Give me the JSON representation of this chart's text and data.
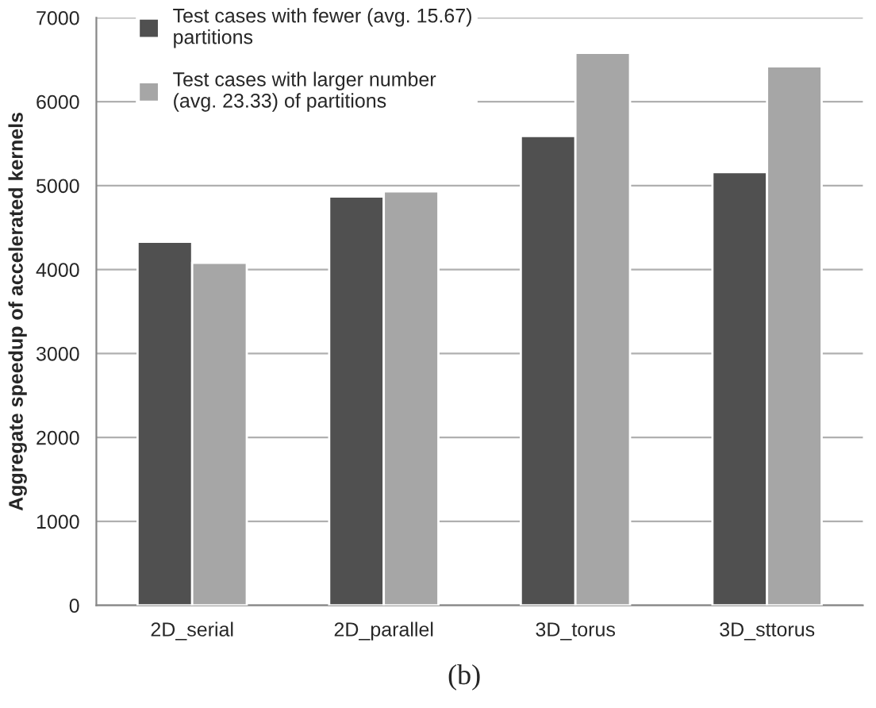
{
  "chart_data": {
    "type": "bar",
    "ylabel": "Aggregate speedup of accelerated kernels",
    "categories": [
      "2D_serial",
      "2D_parallel",
      "3D_torus",
      "3D_sttorus"
    ],
    "series": [
      {
        "name": "Test cases with fewer (avg. 15.67)\npartitions",
        "color": "#505050",
        "values": [
          4330,
          4870,
          5590,
          5160
        ]
      },
      {
        "name": "Test cases with larger number\n(avg. 23.33) of partitions",
        "color": "#a6a6a6",
        "values": [
          4080,
          4930,
          6580,
          6420
        ]
      }
    ],
    "ylim": [
      0,
      7000
    ],
    "yticks": [
      0,
      1000,
      2000,
      3000,
      4000,
      5000,
      6000,
      7000
    ],
    "grid": "y",
    "legend": "top left",
    "annotations": [
      "(b)"
    ]
  }
}
